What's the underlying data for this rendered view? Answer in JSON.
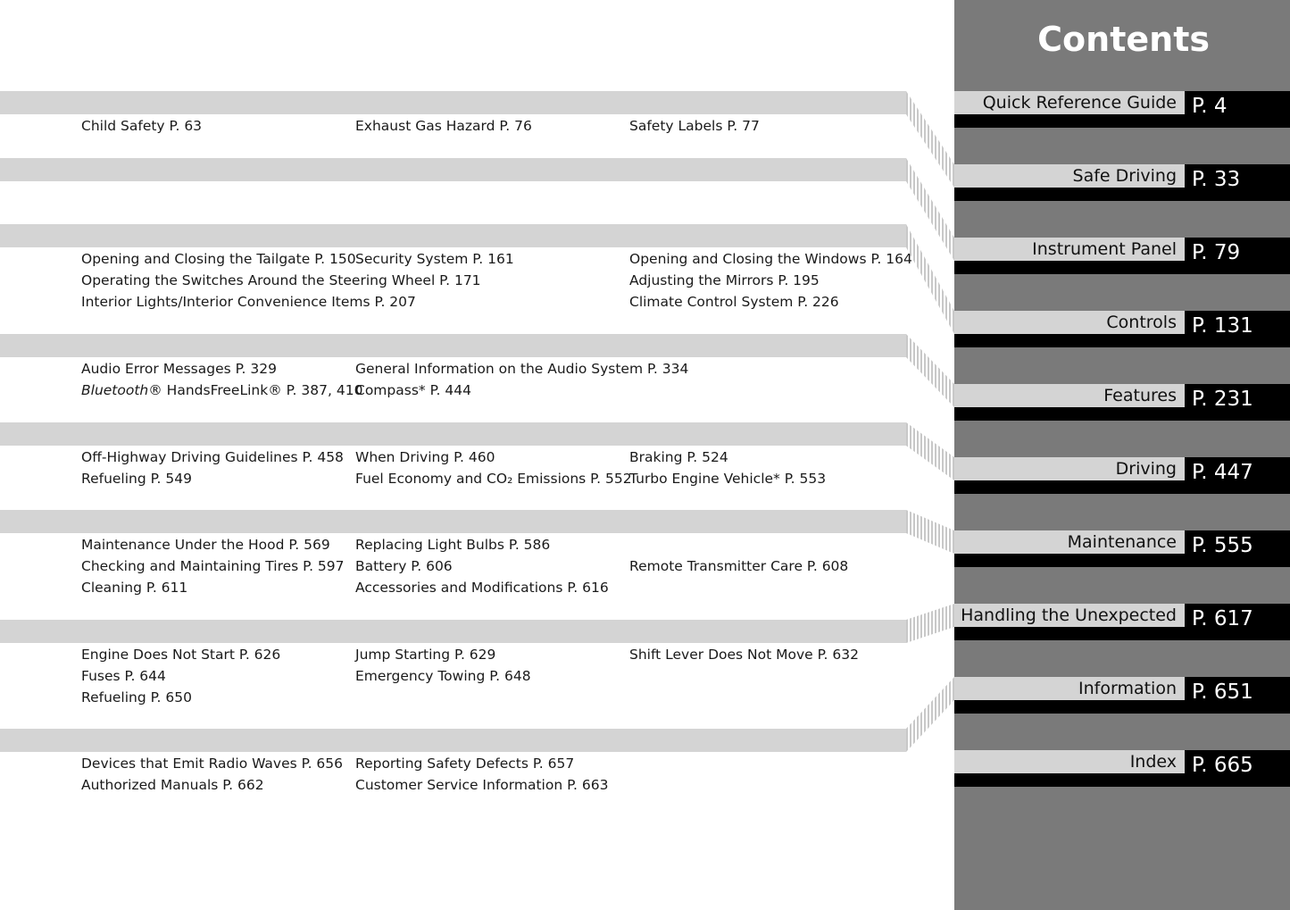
{
  "sidebar": {
    "title": "Contents",
    "items": [
      {
        "label": "Quick Reference Guide",
        "page": "P. 4"
      },
      {
        "label": "Safe Driving",
        "page": "P. 33"
      },
      {
        "label": "Instrument Panel",
        "page": "P. 79"
      },
      {
        "label": "Controls",
        "page": "P. 131"
      },
      {
        "label": "Features",
        "page": "P. 231"
      },
      {
        "label": "Driving",
        "page": "P. 447"
      },
      {
        "label": "Maintenance",
        "page": "P. 555"
      },
      {
        "label": "Handling the Unexpected",
        "page": "P. 617"
      },
      {
        "label": "Information",
        "page": "P. 651"
      },
      {
        "label": "Index",
        "page": "P. 665"
      }
    ]
  },
  "sections": [
    {
      "rows": [
        [
          "Child Safety P. 63",
          "Exhaust Gas Hazard P. 76",
          "Safety Labels P. 77"
        ]
      ]
    },
    {
      "rows": []
    },
    {
      "rows": [
        [
          "Opening and Closing the Tailgate P. 150",
          "Security System P. 161",
          "Opening and Closing the Windows P. 164"
        ],
        [
          "Operating the Switches Around the Steering Wheel P. 171",
          "",
          "Adjusting the Mirrors P. 195"
        ],
        [
          "Interior Lights/Interior Convenience Items P. 207",
          "",
          "Climate Control System P. 226"
        ]
      ]
    },
    {
      "rows": [
        [
          "Audio Error Messages P. 329",
          "General Information on the Audio System P. 334",
          ""
        ],
        [
          {
            "em": "Bluetooth",
            "rest": "® HandsFreeLink® P. 387, 410"
          },
          "Compass* P. 444",
          ""
        ]
      ]
    },
    {
      "rows": [
        [
          "Off-Highway Driving Guidelines P. 458",
          "When Driving P. 460",
          "Braking P. 524"
        ],
        [
          "Refueling P. 549",
          "Fuel Economy and CO₂ Emissions P. 552",
          "Turbo Engine Vehicle* P. 553"
        ]
      ]
    },
    {
      "rows": [
        [
          "Maintenance Under the Hood P. 569",
          "Replacing Light Bulbs P. 586",
          ""
        ],
        [
          "Checking and Maintaining Tires P. 597",
          "Battery P. 606",
          "Remote Transmitter Care P. 608"
        ],
        [
          "Cleaning P. 611",
          "Accessories and Modifications P. 616",
          ""
        ]
      ]
    },
    {
      "rows": [
        [
          "Engine Does Not Start P. 626",
          "Jump Starting P. 629",
          "Shift Lever Does Not Move P. 632"
        ],
        [
          "Fuses P. 644",
          "Emergency Towing P. 648",
          ""
        ],
        [
          "Refueling P. 650",
          "",
          ""
        ]
      ]
    },
    {
      "rows": [
        [
          "Devices that Emit Radio Waves P. 656",
          "Reporting Safety Defects P. 657",
          ""
        ],
        [
          "Authorized Manuals P. 662",
          "Customer Service Information P. 663",
          ""
        ]
      ]
    }
  ]
}
